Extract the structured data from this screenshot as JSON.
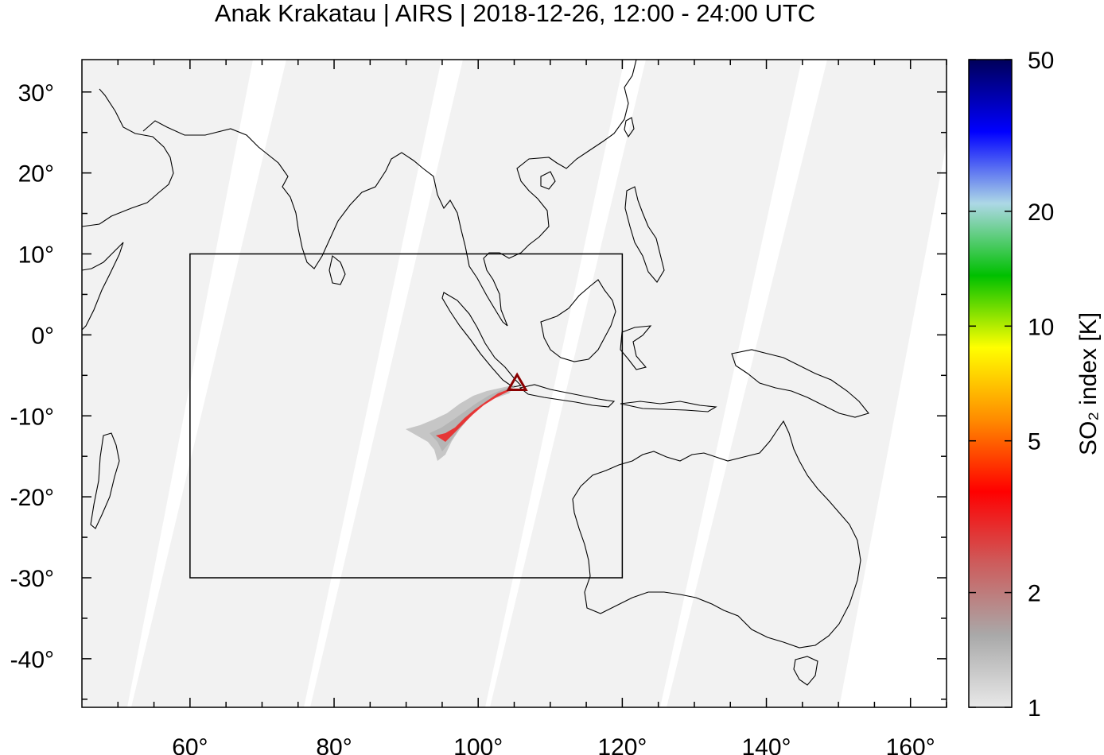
{
  "title": "Anak Krakatau | AIRS | 2018-12-26, 12:00 - 24:00 UTC",
  "map": {
    "lon_range": [
      45,
      165
    ],
    "lat_range": [
      -46,
      34
    ],
    "lon_ticks": [
      {
        "value": 60,
        "label": "60°"
      },
      {
        "value": 80,
        "label": "80°"
      },
      {
        "value": 100,
        "label": "100°"
      },
      {
        "value": 120,
        "label": "120°"
      },
      {
        "value": 140,
        "label": "140°"
      },
      {
        "value": 160,
        "label": "160°"
      }
    ],
    "lat_ticks": [
      {
        "value": 30,
        "label": "30°"
      },
      {
        "value": 20,
        "label": "20°"
      },
      {
        "value": 10,
        "label": "10°"
      },
      {
        "value": 0,
        "label": "0°"
      },
      {
        "value": -10,
        "label": "-10°"
      },
      {
        "value": -20,
        "label": "-20°"
      },
      {
        "value": -30,
        "label": "-30°"
      },
      {
        "value": -40,
        "label": "-40°"
      }
    ],
    "region_box": {
      "lon_min": 60,
      "lon_max": 120,
      "lat_min": -30,
      "lat_max": 10
    },
    "volcano": {
      "name": "Anak Krakatau",
      "lon": 105.4,
      "lat": -6.1
    },
    "colors": {
      "swath": "#f2f2f2",
      "coast": "#000000",
      "volcano": "#8b0000",
      "plume_core": "#ee2020",
      "plume_edge": "#a0a0a0"
    }
  },
  "colorbar": {
    "title": "SO₂ index [K]",
    "scale": "log",
    "range": [
      1,
      50
    ],
    "ticks": [
      {
        "value": 50,
        "label": "50"
      },
      {
        "value": 20,
        "label": "20"
      },
      {
        "value": 10,
        "label": "10"
      },
      {
        "value": 5,
        "label": "5"
      },
      {
        "value": 2,
        "label": "2"
      },
      {
        "value": 1,
        "label": "1"
      }
    ],
    "stops": [
      "#e8e8e8",
      "#a9a9a9",
      "#cd5c5c",
      "#ff0000",
      "#ff8c00",
      "#ffff00",
      "#00c000",
      "#add8e6",
      "#0000ff",
      "#00005a"
    ]
  }
}
